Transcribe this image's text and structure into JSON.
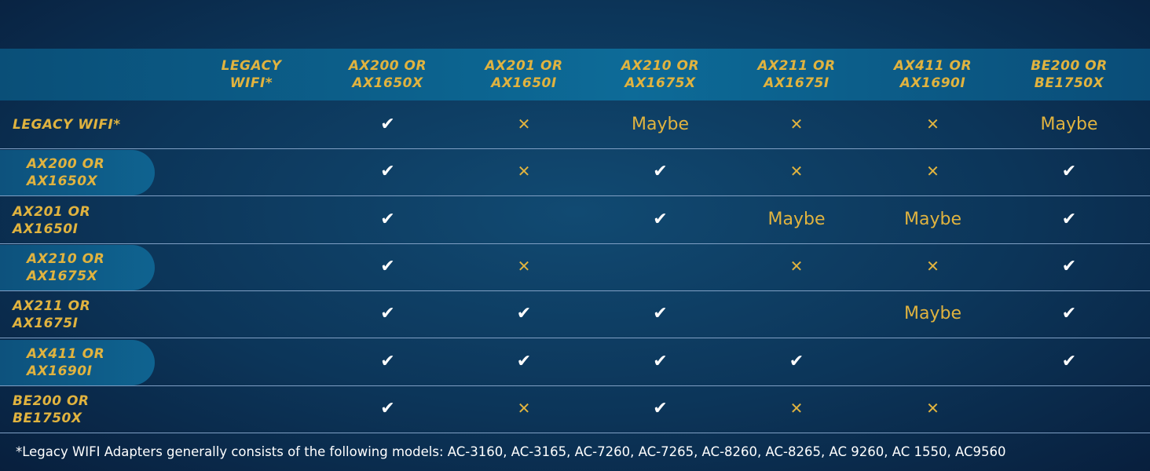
{
  "table": {
    "columns": [
      "LEGACY WIFI*",
      "AX200 OR AX1650X",
      "AX201 OR AX1650I",
      "AX210 OR AX1675X",
      "AX211 OR AX1675I",
      "AX411 OR AX1690I",
      "BE200 OR BE1750X"
    ],
    "rows": [
      {
        "label": "LEGACY WIFI*",
        "cells": [
          null,
          "✔",
          "✕",
          "Maybe",
          "✕",
          "✕",
          "Maybe"
        ]
      },
      {
        "label": "AX200 OR AX1650X",
        "cells": [
          null,
          "✔",
          "✕",
          "✔",
          "✕",
          "✕",
          "✔"
        ]
      },
      {
        "label": "AX201 OR AX1650I",
        "cells": [
          null,
          "✔",
          null,
          "✔",
          "Maybe",
          "Maybe",
          "✔"
        ]
      },
      {
        "label": "AX210 OR AX1675X",
        "cells": [
          null,
          "✔",
          "✕",
          null,
          "✕",
          "✕",
          "✔"
        ]
      },
      {
        "label": "AX211 OR AX1675I",
        "cells": [
          null,
          "✔",
          "✔",
          "✔",
          null,
          "Maybe",
          "✔"
        ]
      },
      {
        "label": "AX411 OR AX1690I",
        "cells": [
          null,
          "✔",
          "✔",
          "✔",
          "✔",
          null,
          "✔"
        ]
      },
      {
        "label": "BE200 OR BE1750X",
        "cells": [
          null,
          "✔",
          "✕",
          "✔",
          "✕",
          "✕",
          null
        ]
      }
    ]
  },
  "footnote": "*Legacy WIFI Adapters generally consists of the following models: AC-3160, AC-3165, AC-7260, AC-7265, AC-8260, AC-8265, AC 9260, AC 1550, AC9560"
}
